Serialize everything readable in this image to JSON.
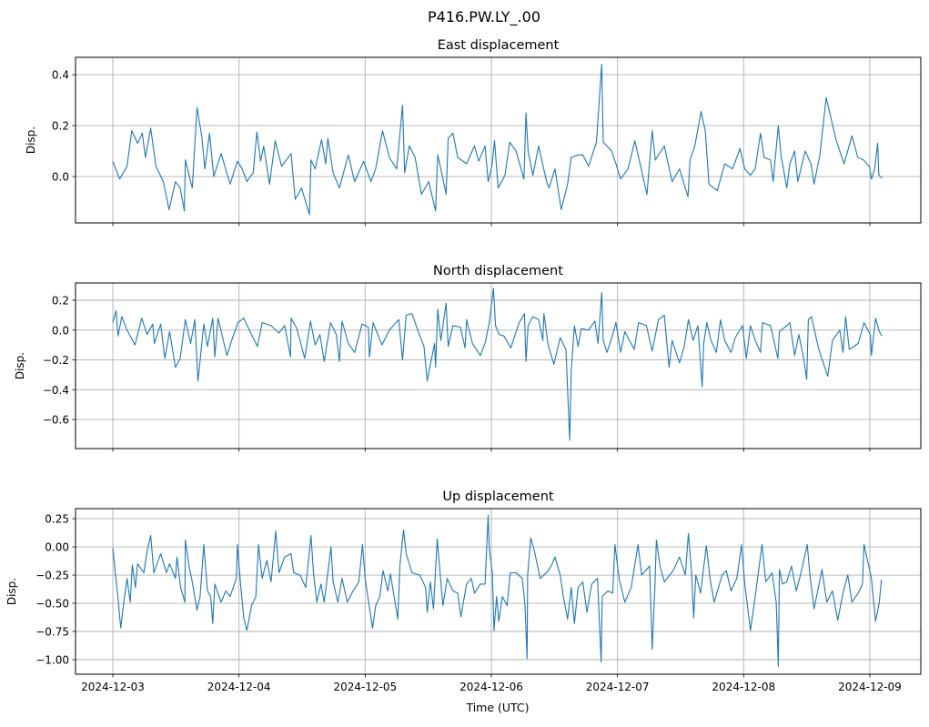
{
  "chart_data": {
    "type": "line",
    "title": "P416.PW.LY_.00",
    "xlabel": "Time (UTC)",
    "x_units": "hours since 2024-12-03 00:00 UTC",
    "xlim": [
      -7.1,
      153.7
    ],
    "x_ticks": [
      0,
      24,
      48,
      72,
      96,
      120,
      144
    ],
    "x_tick_labels": [
      "2024-12-03",
      "2024-12-04",
      "2024-12-05",
      "2024-12-06",
      "2024-12-07",
      "2024-12-08",
      "2024-12-09"
    ],
    "grid": true,
    "line_color": "#1f77b4",
    "panels": [
      {
        "title": "East displacement",
        "ylabel": "Disp.",
        "ylim": [
          -0.182,
          0.468
        ],
        "y_ticks": [
          0.0,
          0.2,
          0.4
        ],
        "y_tick_labels": [
          "0.0",
          "0.2",
          "0.4"
        ],
        "t_hours": [
          0,
          1.3,
          2.7,
          3.6,
          4.7,
          5.6,
          6.2,
          7.2,
          8.2,
          9.6,
          10.7,
          11.9,
          12.8,
          13.6,
          13.8,
          15.1,
          16.0,
          16.9,
          17.5,
          18.4,
          19.2,
          20.6,
          22.3,
          23.7,
          24.6,
          25.5,
          26.7,
          27.4,
          28.1,
          28.7,
          29.8,
          30.9,
          32.1,
          33.9,
          34.7,
          35.9,
          37.4,
          37.7,
          38.5,
          39.7,
          40.5,
          40.9,
          41.9,
          43.1,
          44.8,
          46.0,
          47.7,
          49.1,
          50.0,
          51.3,
          52.6,
          54.0,
          55.1,
          55.5,
          56.4,
          57.5,
          58.7,
          60.1,
          61.4,
          61.8,
          62.7,
          63.4,
          63.8,
          64.7,
          65.6,
          67.3,
          68.8,
          69.6,
          70.8,
          71.4,
          72.1,
          72.6,
          73.3,
          74.6,
          75.5,
          76.7,
          78.2,
          78.6,
          79.0,
          79.9,
          81.0,
          82.5,
          83.0,
          84.1,
          85.3,
          86.5,
          87.2,
          88.5,
          89.4,
          90.5,
          92.0,
          93.0,
          93.3,
          94.9,
          95.7,
          96.6,
          98.0,
          99.3,
          100.3,
          101.6,
          102.6,
          103.2,
          104.9,
          106.4,
          107.8,
          109.4,
          109.8,
          110.7,
          111.9,
          112.7,
          113.4,
          115.0,
          116.4,
          117.9,
          119.3,
          120.2,
          121.3,
          122.2,
          123.2,
          123.9,
          125.1,
          125.6,
          126.6,
          127.1,
          128.2,
          128.8,
          129.7,
          130.3,
          131.7,
          132.8,
          133.4,
          134.5,
          135.7,
          136.6,
          137.7,
          139.1,
          140.6,
          141.7,
          142.8,
          143.9,
          144.3,
          144.9,
          145.5,
          145.7,
          146.3
        ],
        "values": [
          0.06,
          -0.01,
          0.04,
          0.18,
          0.13,
          0.17,
          0.075,
          0.19,
          0.04,
          -0.02,
          -0.13,
          -0.02,
          -0.045,
          -0.135,
          0.065,
          -0.045,
          0.27,
          0.16,
          0.03,
          0.17,
          0.0,
          0.09,
          -0.03,
          0.06,
          0.03,
          -0.02,
          0.015,
          0.175,
          0.06,
          0.12,
          -0.03,
          0.14,
          0.04,
          0.09,
          -0.09,
          -0.045,
          -0.15,
          0.065,
          0.03,
          0.145,
          0.05,
          0.15,
          0.015,
          -0.045,
          0.085,
          -0.02,
          0.06,
          -0.02,
          0.03,
          0.18,
          0.075,
          0.03,
          0.28,
          0.015,
          0.12,
          0.075,
          -0.07,
          -0.02,
          -0.135,
          0.085,
          0.0,
          -0.07,
          0.15,
          0.17,
          0.075,
          0.05,
          0.12,
          0.06,
          0.12,
          -0.02,
          0.04,
          0.14,
          -0.045,
          0.005,
          0.135,
          0.1,
          -0.01,
          0.25,
          0.1,
          0.005,
          0.12,
          -0.02,
          -0.045,
          0.03,
          -0.13,
          -0.03,
          0.075,
          0.085,
          0.085,
          0.04,
          0.135,
          0.44,
          0.135,
          0.1,
          0.05,
          -0.01,
          0.03,
          0.14,
          0.05,
          -0.07,
          0.18,
          0.065,
          0.12,
          -0.02,
          0.03,
          -0.08,
          0.065,
          0.12,
          0.255,
          0.18,
          -0.03,
          -0.055,
          0.05,
          0.03,
          0.11,
          0.03,
          0.005,
          0.03,
          0.17,
          0.075,
          0.065,
          -0.02,
          0.2,
          0.085,
          -0.045,
          0.05,
          0.1,
          -0.02,
          0.1,
          0.05,
          -0.03,
          0.085,
          0.31,
          0.23,
          0.135,
          0.05,
          0.16,
          0.075,
          0.065,
          0.04,
          -0.01,
          0.03,
          0.13,
          0.005,
          -0.005
        ]
      },
      {
        "title": "North displacement",
        "ylabel": "Disp.",
        "ylim": [
          -0.795,
          0.316
        ],
        "y_ticks": [
          -0.6,
          -0.4,
          -0.2,
          0.0,
          0.2
        ],
        "y_tick_labels": [
          "−0.6",
          "−0.4",
          "−0.2",
          "0.0",
          "0.2"
        ],
        "t_hours": [
          0,
          0.6,
          1.0,
          1.7,
          2.7,
          4.2,
          5.5,
          6.5,
          7.6,
          7.9,
          9.1,
          9.9,
          10.8,
          11.9,
          12.8,
          13.8,
          14.8,
          15.6,
          16.2,
          17.3,
          18.0,
          19.0,
          19.4,
          20.0,
          21.7,
          22.6,
          23.8,
          24.9,
          26.1,
          27.5,
          28.4,
          30.1,
          31.6,
          32.7,
          33.8,
          33.9,
          35.0,
          36.5,
          37.6,
          38.5,
          39.4,
          40.2,
          41.4,
          42.5,
          43.1,
          43.6,
          44.8,
          46.0,
          47.4,
          48.6,
          48.8,
          49.5,
          51.2,
          52.6,
          54.4,
          55.1,
          55.8,
          56.9,
          58.1,
          59.2,
          59.8,
          60.4,
          61.2,
          61.4,
          61.8,
          62.4,
          63.4,
          63.8,
          64.7,
          66.1,
          67.0,
          67.3,
          68.4,
          69.9,
          70.8,
          71.6,
          72.4,
          72.8,
          73.5,
          74.4,
          75.7,
          77.3,
          78.3,
          78.6,
          79.0,
          79.9,
          81.0,
          81.8,
          82.0,
          82.8,
          83.9,
          85.1,
          86.2,
          86.9,
          87.2,
          87.8,
          88.5,
          89.1,
          90.5,
          91.7,
          92.3,
          93.0,
          93.3,
          94.0,
          95.1,
          95.7,
          96.6,
          97.4,
          99.2,
          100.0,
          101.5,
          102.6,
          103.8,
          104.9,
          105.8,
          106.4,
          107.8,
          108.7,
          109.5,
          110.4,
          111.3,
          112.1,
          112.4,
          113.0,
          113.8,
          114.8,
          115.6,
          116.4,
          117.6,
          118.4,
          119.8,
          120.5,
          121.3,
          122.2,
          123.2,
          123.6,
          125.1,
          126.5,
          126.8,
          128.2,
          128.8,
          129.7,
          130.5,
          131.4,
          132.0,
          132.3,
          132.9,
          134.3,
          136.0,
          136.9,
          138.3,
          138.9,
          139.4,
          140.1,
          141.8,
          142.9,
          144.1,
          144.3,
          145.1,
          145.8,
          146.3
        ],
        "values": [
          0.05,
          0.13,
          -0.04,
          0.09,
          0.0,
          -0.1,
          0.08,
          -0.03,
          0.04,
          -0.09,
          0.04,
          -0.19,
          -0.01,
          -0.25,
          -0.19,
          0.07,
          -0.09,
          0.07,
          -0.34,
          0.04,
          -0.11,
          0.08,
          -0.18,
          0.08,
          -0.17,
          -0.07,
          0.05,
          0.08,
          -0.01,
          -0.11,
          0.05,
          0.03,
          -0.02,
          0.03,
          -0.18,
          0.08,
          0.01,
          -0.19,
          0.06,
          -0.1,
          -0.03,
          -0.21,
          0.05,
          -0.03,
          -0.21,
          0.06,
          -0.09,
          -0.15,
          0.04,
          0.02,
          -0.18,
          0.05,
          -0.1,
          0.0,
          0.07,
          -0.2,
          0.1,
          0.11,
          -0.01,
          -0.11,
          -0.34,
          -0.23,
          -0.09,
          -0.25,
          0.14,
          -0.07,
          0.18,
          -0.11,
          0.03,
          0.02,
          -0.12,
          0.07,
          -0.09,
          -0.17,
          -0.09,
          0.05,
          0.28,
          0.03,
          -0.03,
          -0.04,
          -0.12,
          0.05,
          0.11,
          -0.21,
          0.03,
          0.09,
          0.07,
          -0.07,
          0.11,
          -0.1,
          -0.23,
          -0.05,
          -0.13,
          -0.74,
          -0.27,
          0.03,
          -0.11,
          0.01,
          0.0,
          0.06,
          -0.09,
          0.25,
          -0.07,
          -0.15,
          -0.03,
          0.05,
          -0.15,
          -0.01,
          -0.13,
          0.05,
          0.03,
          -0.14,
          0.07,
          0.1,
          -0.25,
          -0.07,
          -0.22,
          -0.11,
          0.07,
          -0.07,
          0.03,
          -0.38,
          -0.09,
          0.05,
          -0.07,
          -0.15,
          0.07,
          -0.07,
          -0.15,
          -0.05,
          0.03,
          -0.19,
          0.03,
          -0.07,
          -0.15,
          0.05,
          0.03,
          -0.19,
          -0.01,
          0.03,
          0.05,
          -0.17,
          -0.03,
          -0.19,
          -0.33,
          0.07,
          0.09,
          -0.13,
          -0.31,
          -0.07,
          0.0,
          -0.15,
          0.09,
          -0.13,
          -0.09,
          0.05,
          -0.03,
          -0.17,
          0.08,
          -0.01,
          -0.04
        ]
      },
      {
        "title": "Up displacement",
        "ylabel": "Disp.",
        "ylim": [
          -1.129,
          0.339
        ],
        "y_ticks": [
          -1.0,
          -0.75,
          -0.5,
          -0.25,
          0.0,
          0.25
        ],
        "y_tick_labels": [
          "−1.00",
          "−0.75",
          "−0.50",
          "−0.25",
          "0.00",
          "0.25"
        ],
        "t_hours": [
          0,
          0.4,
          0.9,
          1.5,
          2.0,
          2.7,
          3.3,
          3.7,
          4.3,
          4.7,
          5.9,
          6.5,
          7.2,
          7.8,
          9.1,
          10.2,
          10.8,
          11.9,
          12.2,
          12.9,
          13.7,
          13.8,
          14.5,
          15.1,
          16.0,
          16.6,
          17.3,
          18.0,
          18.6,
          19.0,
          19.4,
          20.6,
          21.5,
          22.3,
          23.5,
          23.7,
          24.3,
          24.9,
          25.5,
          26.4,
          27.2,
          27.7,
          28.4,
          29.3,
          30.1,
          31.0,
          31.6,
          32.7,
          33.9,
          34.4,
          35.6,
          36.7,
          37.7,
          38.2,
          38.8,
          39.6,
          40.2,
          41.5,
          41.9,
          42.8,
          43.6,
          44.6,
          45.7,
          46.8,
          47.5,
          48.0,
          48.5,
          49.4,
          50.0,
          50.8,
          51.4,
          52.3,
          52.8,
          54.2,
          54.6,
          55.3,
          55.8,
          56.9,
          58.4,
          59.5,
          59.8,
          60.4,
          61.0,
          61.7,
          62.4,
          62.8,
          63.6,
          64.7,
          65.6,
          66.2,
          67.3,
          68.2,
          68.8,
          69.9,
          70.8,
          71.4,
          71.6,
          72.2,
          72.5,
          73.0,
          73.4,
          74.1,
          75.0,
          75.6,
          76.7,
          77.9,
          78.4,
          78.8,
          78.9,
          79.5,
          80.2,
          81.3,
          82.5,
          83.4,
          84.1,
          85.1,
          85.7,
          86.5,
          87.2,
          87.8,
          88.5,
          89.4,
          90.2,
          91.1,
          92.2,
          92.9,
          93.1,
          94.2,
          95.1,
          95.5,
          96.3,
          97.4,
          98.6,
          99.9,
          100.6,
          102.1,
          102.6,
          103.1,
          103.4,
          104.1,
          104.9,
          106.6,
          107.8,
          108.9,
          109.5,
          110.1,
          110.5,
          110.9,
          111.8,
          112.9,
          113.6,
          114.4,
          115.9,
          116.7,
          117.6,
          118.7,
          119.6,
          120.2,
          121.3,
          122.2,
          123.5,
          124.2,
          125.4,
          126.2,
          126.6,
          126.8,
          127.4,
          128.2,
          129.1,
          130.0,
          130.8,
          132.1,
          132.6,
          133.4,
          134.9,
          135.8,
          136.9,
          137.9,
          138.9,
          139.8,
          140.6,
          141.8,
          142.6,
          142.9,
          143.8,
          144.3,
          145.1,
          145.8,
          146.2
        ],
        "values": [
          -0.01,
          -0.2,
          -0.41,
          -0.72,
          -0.52,
          -0.28,
          -0.49,
          -0.16,
          -0.36,
          -0.15,
          -0.23,
          -0.04,
          0.1,
          -0.23,
          -0.06,
          -0.23,
          -0.15,
          -0.28,
          -0.09,
          -0.36,
          -0.49,
          0.06,
          -0.17,
          -0.31,
          -0.56,
          -0.44,
          0.02,
          -0.39,
          -0.44,
          -0.68,
          -0.33,
          -0.49,
          -0.39,
          -0.44,
          -0.28,
          0.02,
          -0.33,
          -0.63,
          -0.74,
          -0.52,
          -0.44,
          0.02,
          -0.28,
          -0.12,
          -0.31,
          0.14,
          -0.23,
          -0.09,
          -0.06,
          -0.23,
          -0.25,
          -0.36,
          0.1,
          -0.25,
          -0.49,
          -0.33,
          -0.49,
          0.0,
          -0.31,
          -0.49,
          -0.28,
          -0.49,
          -0.39,
          -0.31,
          0.02,
          -0.28,
          -0.44,
          -0.72,
          -0.52,
          -0.44,
          -0.21,
          -0.39,
          -0.24,
          -0.64,
          -0.17,
          0.15,
          -0.06,
          -0.23,
          -0.25,
          -0.36,
          -0.58,
          -0.31,
          -0.55,
          0.07,
          -0.31,
          -0.52,
          -0.28,
          -0.39,
          -0.41,
          -0.62,
          -0.33,
          -0.28,
          -0.41,
          -0.33,
          -0.33,
          0.28,
          -0.01,
          -0.23,
          -0.74,
          -0.44,
          -0.66,
          -0.44,
          -0.52,
          -0.23,
          -0.23,
          -0.28,
          -0.52,
          -0.99,
          -0.25,
          0.08,
          -0.04,
          -0.28,
          -0.23,
          -0.17,
          -0.09,
          -0.25,
          -0.44,
          -0.64,
          -0.36,
          -0.68,
          -0.36,
          -0.31,
          -0.58,
          -0.33,
          -0.28,
          -1.02,
          -0.44,
          -0.39,
          -0.41,
          0.02,
          -0.28,
          -0.49,
          -0.36,
          0.02,
          -0.25,
          -0.17,
          -0.91,
          -0.36,
          0.06,
          -0.17,
          -0.31,
          -0.21,
          -0.09,
          -0.25,
          0.12,
          -0.23,
          -0.63,
          -0.25,
          -0.41,
          0.01,
          -0.28,
          -0.49,
          -0.25,
          -0.21,
          -0.39,
          -0.28,
          0.02,
          -0.33,
          -0.74,
          -0.44,
          0.02,
          -0.31,
          -0.23,
          -0.49,
          -1.06,
          -0.2,
          -0.33,
          -0.31,
          -0.17,
          -0.39,
          -0.25,
          0.02,
          -0.25,
          -0.55,
          -0.2,
          -0.49,
          -0.39,
          -0.65,
          -0.41,
          -0.25,
          -0.49,
          -0.41,
          -0.33,
          0.02,
          -0.17,
          -0.28,
          -0.66,
          -0.49,
          -0.29
        ]
      }
    ]
  }
}
